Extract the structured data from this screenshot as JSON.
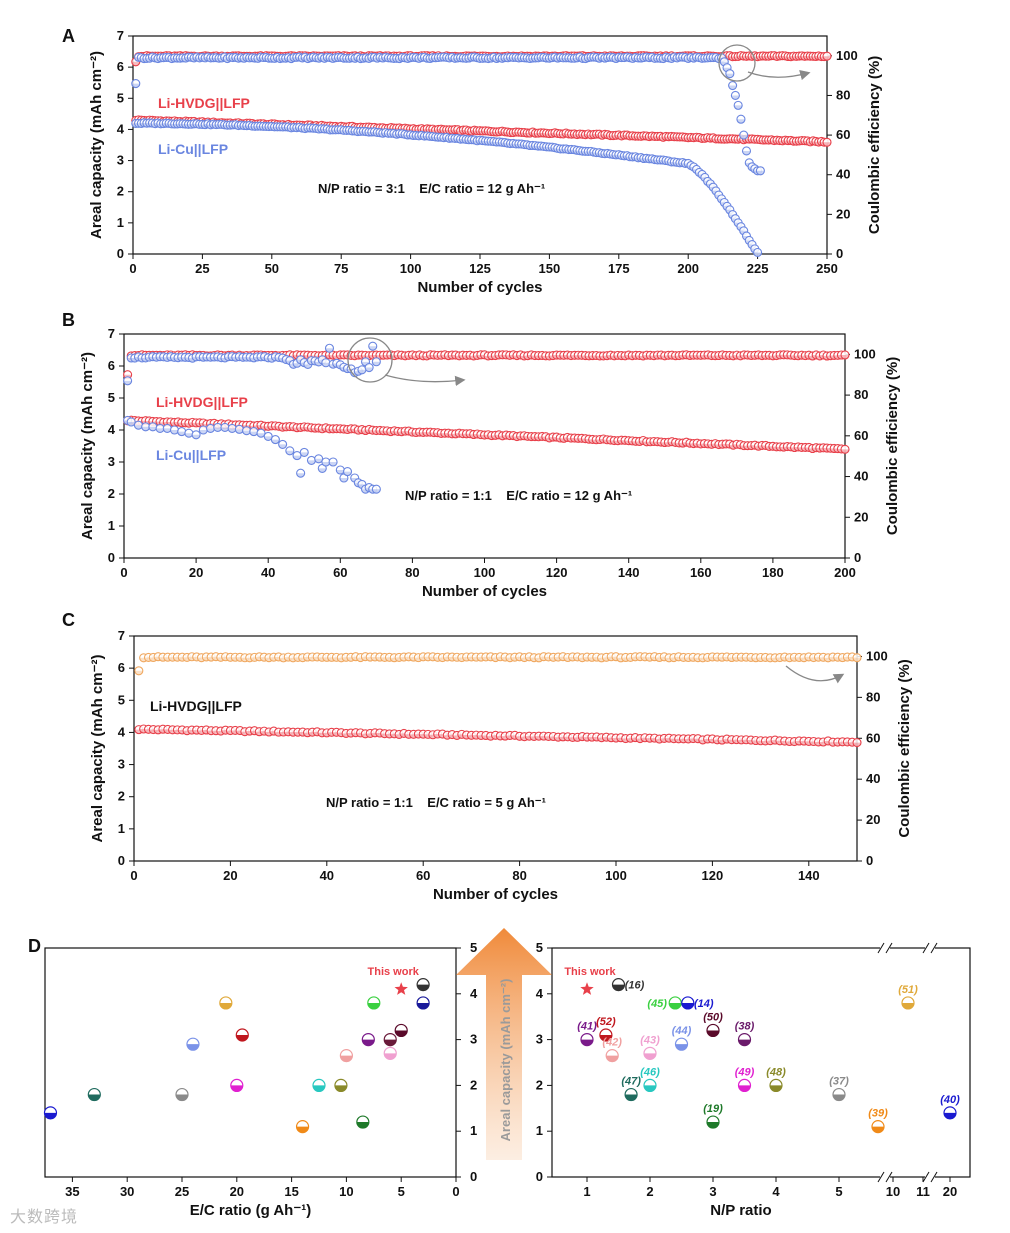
{
  "panels": {
    "A": {
      "letter": "A",
      "series_labels": [
        "Li-HVDG||LFP",
        "Li-Cu||LFP"
      ],
      "conditions": "N/P ratio = 3:1    E/C ratio = 12 g Ah⁻¹"
    },
    "B": {
      "letter": "B",
      "series_labels": [
        "Li-HVDG||LFP",
        "Li-Cu||LFP"
      ],
      "conditions": "N/P ratio = 1:1    E/C ratio = 12 g Ah⁻¹"
    },
    "C": {
      "letter": "C",
      "series_labels": [
        "Li-HVDG||LFP"
      ],
      "conditions": "N/P ratio = 1:1    E/C ratio = 5 g Ah⁻¹"
    },
    "D": {
      "letter": "D",
      "this_work_label": "This work",
      "shared_ylabel": "Areal capacity (mAh cm⁻²)"
    }
  },
  "colors": {
    "red": "#e8404a",
    "blue": "#6a86e0",
    "orange": "#f0a860",
    "text": "#111111"
  },
  "watermark": "大数跨境",
  "chart_data": [
    {
      "id": "A",
      "type": "scatter",
      "xlabel": "Number of cycles",
      "ylabel": "Areal capacity (mAh cm⁻²)",
      "y2label": "Coulombic efficiency (%)",
      "xlim": [
        0,
        250
      ],
      "ylim": [
        0,
        7
      ],
      "y2lim": [
        0,
        110
      ],
      "xticks": [
        0,
        25,
        50,
        75,
        100,
        125,
        150,
        175,
        200,
        225,
        250
      ],
      "yticks": [
        0,
        1,
        2,
        3,
        4,
        5,
        6,
        7
      ],
      "y2ticks": [
        0,
        20,
        40,
        60,
        80,
        100
      ],
      "series": [
        {
          "name": "Li-HVDG||LFP capacity",
          "color": "#e8404a",
          "axis": "left",
          "kind": "capacity_decay",
          "n": 250,
          "start": 4.3,
          "end": 3.6
        },
        {
          "name": "Li-HVDG||LFP CE",
          "color": "#e8404a",
          "axis": "right",
          "kind": "ce_flat",
          "n": 250,
          "first": 97,
          "value": 99.8
        },
        {
          "name": "Li-Cu||LFP capacity",
          "color": "#6a86e0",
          "axis": "left",
          "kind": "capacity_fail",
          "n": 225,
          "start": 4.2,
          "knee": 200,
          "knee_val": 2.9,
          "end": 0.05
        },
        {
          "name": "Li-Cu||LFP CE",
          "color": "#6a86e0",
          "axis": "right",
          "kind": "ce_fail",
          "n": 226,
          "first": 86,
          "value": 99,
          "fail_start": 213,
          "tail": [
            97,
            94,
            91,
            85,
            80,
            75,
            68,
            60,
            52,
            46,
            44,
            43,
            42
          ]
        }
      ]
    },
    {
      "id": "B",
      "type": "scatter",
      "xlabel": "Number of cycles",
      "ylabel": "Areal capacity (mAh cm⁻²)",
      "y2label": "Coulombic efficiency (%)",
      "xlim": [
        0,
        200
      ],
      "ylim": [
        0,
        7
      ],
      "y2lim": [
        0,
        110
      ],
      "xticks": [
        0,
        20,
        40,
        60,
        80,
        100,
        120,
        140,
        160,
        180,
        200
      ],
      "yticks": [
        0,
        1,
        2,
        3,
        4,
        5,
        6,
        7
      ],
      "y2ticks": [
        0,
        20,
        40,
        60,
        80,
        100
      ],
      "series": [
        {
          "name": "Li-HVDG||LFP capacity",
          "color": "#e8404a",
          "axis": "left",
          "kind": "capacity_decay",
          "n": 200,
          "start": 4.3,
          "end": 3.4
        },
        {
          "name": "Li-HVDG||LFP CE",
          "color": "#e8404a",
          "axis": "right",
          "kind": "ce_flat",
          "n": 200,
          "first": 90,
          "value": 99.5
        },
        {
          "name": "Li-Cu||LFP capacity",
          "color": "#6a86e0",
          "axis": "left",
          "kind": "capacity_b_cu",
          "n": 70
        },
        {
          "name": "Li-Cu||LFP CE",
          "color": "#6a86e0",
          "axis": "right",
          "kind": "ce_b_cu",
          "n": 70
        }
      ]
    },
    {
      "id": "C",
      "type": "scatter",
      "xlabel": "Number of cycles",
      "ylabel": "Areal capacity (mAh cm⁻²)",
      "y2label": "Coulombic efficiency (%)",
      "xlim": [
        0,
        150
      ],
      "ylim": [
        0,
        7
      ],
      "y2lim": [
        0,
        110
      ],
      "xticks": [
        0,
        20,
        40,
        60,
        80,
        100,
        120,
        140
      ],
      "yticks": [
        0,
        1,
        2,
        3,
        4,
        5,
        6,
        7
      ],
      "y2ticks": [
        0,
        20,
        40,
        60,
        80,
        100
      ],
      "series": [
        {
          "name": "Li-HVDG||LFP capacity",
          "color": "#e8404a",
          "axis": "left",
          "kind": "capacity_decay",
          "n": 150,
          "start": 4.1,
          "end": 3.7
        },
        {
          "name": "Li-HVDG||LFP CE",
          "color": "#f0a860",
          "axis": "right",
          "kind": "ce_flat",
          "n": 150,
          "first": 93,
          "value": 99.6
        }
      ]
    },
    {
      "id": "D-left",
      "type": "scatter",
      "xlabel": "E/C ratio (g Ah⁻¹)",
      "xlim": [
        37.5,
        0
      ],
      "ylim": [
        0,
        5
      ],
      "xticks": [
        35,
        30,
        25,
        20,
        15,
        10,
        5,
        0
      ],
      "yticks": [
        0,
        1,
        2,
        3,
        4,
        5
      ],
      "this_work": {
        "x": 5,
        "y": 4.1
      },
      "points": [
        {
          "x": 37,
          "y": 1.4,
          "color": "#1a1ad0"
        },
        {
          "x": 33,
          "y": 1.8,
          "color": "#1f6b5e"
        },
        {
          "x": 25,
          "y": 1.8,
          "color": "#8a8a8a"
        },
        {
          "x": 24,
          "y": 2.9,
          "color": "#7a92e8"
        },
        {
          "x": 21,
          "y": 3.8,
          "color": "#e0a93a"
        },
        {
          "x": 20,
          "y": 2.0,
          "color": "#e020d0"
        },
        {
          "x": 19.5,
          "y": 3.1,
          "color": "#c0171e"
        },
        {
          "x": 14,
          "y": 1.1,
          "color": "#f08a18"
        },
        {
          "x": 12.5,
          "y": 2.0,
          "color": "#28c8c0"
        },
        {
          "x": 10.5,
          "y": 2.0,
          "color": "#8a8a2a"
        },
        {
          "x": 10,
          "y": 2.65,
          "color": "#f0a0a0"
        },
        {
          "x": 8.5,
          "y": 1.2,
          "color": "#1f7a2a"
        },
        {
          "x": 8,
          "y": 3.0,
          "color": "#7a1a8a"
        },
        {
          "x": 7.5,
          "y": 3.8,
          "color": "#3ad040"
        },
        {
          "x": 6,
          "y": 2.7,
          "color": "#f0a0d0"
        },
        {
          "x": 6,
          "y": 3.0,
          "color": "#6a1a3a"
        },
        {
          "x": 5,
          "y": 3.2,
          "color": "#5a0a2a"
        },
        {
          "x": 3,
          "y": 4.2,
          "color": "#333333"
        },
        {
          "x": 3,
          "y": 3.8,
          "color": "#1a1a9a"
        }
      ]
    },
    {
      "id": "D-right",
      "type": "scatter",
      "xlabel": "N/P ratio",
      "ylim": [
        0,
        5
      ],
      "xticks": [
        "1",
        "2",
        "3",
        "4",
        "5",
        "10",
        "11",
        "20"
      ],
      "yticks": [
        0,
        1,
        2,
        3,
        4,
        5
      ],
      "this_work": {
        "x": 1,
        "y": 4.1
      },
      "points": [
        {
          "x": 1.5,
          "y": 4.2,
          "ref": "(16)",
          "color": "#333333"
        },
        {
          "x": 2.4,
          "y": 3.8,
          "ref": "(45)",
          "color": "#3ad040"
        },
        {
          "x": 2.6,
          "y": 3.8,
          "ref": "(14)",
          "color": "#1a1ad0"
        },
        {
          "x": 1.3,
          "y": 3.1,
          "ref": "(52)",
          "color": "#c0171e"
        },
        {
          "x": 1,
          "y": 3.0,
          "ref": "(41)",
          "color": "#7a1a8a"
        },
        {
          "x": 1.4,
          "y": 2.65,
          "ref": "(42)",
          "color": "#f0a0a0"
        },
        {
          "x": 2,
          "y": 2.7,
          "ref": "(43)",
          "color": "#f0a0d0"
        },
        {
          "x": 2.5,
          "y": 2.9,
          "ref": "(44)",
          "color": "#7a92e8"
        },
        {
          "x": 3,
          "y": 3.2,
          "ref": "(50)",
          "color": "#5a0a2a"
        },
        {
          "x": 3.5,
          "y": 3.0,
          "ref": "(38)",
          "color": "#6a1a6a"
        },
        {
          "x": 1.7,
          "y": 1.8,
          "ref": "(47)",
          "color": "#1f6b5e"
        },
        {
          "x": 2,
          "y": 2.0,
          "ref": "(46)",
          "color": "#28c8c0"
        },
        {
          "x": 3,
          "y": 1.2,
          "ref": "(19)",
          "color": "#1f7a2a"
        },
        {
          "x": 3.5,
          "y": 2.0,
          "ref": "(49)",
          "color": "#e020d0"
        },
        {
          "x": 4,
          "y": 2.0,
          "ref": "(48)",
          "color": "#8a8a2a"
        },
        {
          "x": 5,
          "y": 1.8,
          "ref": "(37)",
          "color": "#8a8a8a"
        },
        {
          "x": 10.5,
          "y": 3.8,
          "ref": "(51)",
          "color": "#e0a93a"
        },
        {
          "x": 9.5,
          "y": 1.1,
          "ref": "(39)",
          "color": "#f08a18"
        },
        {
          "x": 20,
          "y": 1.4,
          "ref": "(40)",
          "color": "#1a1ad0"
        }
      ]
    }
  ]
}
